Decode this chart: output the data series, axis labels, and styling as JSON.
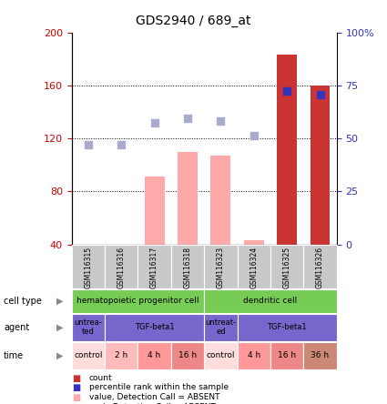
{
  "title": "GDS2940 / 689_at",
  "samples": [
    "GSM116315",
    "GSM116316",
    "GSM116317",
    "GSM116318",
    "GSM116323",
    "GSM116324",
    "GSM116325",
    "GSM116326"
  ],
  "bar_values": [
    0,
    2,
    91,
    110,
    107,
    43,
    183,
    160
  ],
  "bar_colors": [
    "#cc3333",
    "#cc3333",
    "#ffaaaa",
    "#ffaaaa",
    "#ffaaaa",
    "#ffaaaa",
    "#cc3333",
    "#cc3333"
  ],
  "rank_dots": [
    115,
    115,
    132,
    135,
    133,
    122,
    156,
    153
  ],
  "rank_dot_colors": [
    "#aaaacc",
    "#aaaacc",
    "#aaaacc",
    "#aaaacc",
    "#aaaacc",
    "#aaaacc",
    "#3333bb",
    "#3333bb"
  ],
  "ylim": [
    40,
    200
  ],
  "y_ticks_left": [
    40,
    80,
    120,
    160,
    200
  ],
  "right_ytick_values": [
    40,
    80,
    120,
    160,
    200
  ],
  "right_ytick_labels": [
    "0",
    "25",
    "50",
    "75",
    "100%"
  ],
  "cell_spans": [
    [
      0,
      4,
      "hematopoietic progenitor cell"
    ],
    [
      4,
      8,
      "dendritic cell"
    ]
  ],
  "cell_color": "#77cc55",
  "agent_spans": [
    [
      0,
      1,
      "untrea-\nted"
    ],
    [
      1,
      4,
      "TGF-beta1"
    ],
    [
      4,
      5,
      "untreat-\ned"
    ],
    [
      5,
      8,
      "TGF-beta1"
    ]
  ],
  "agent_color": "#7766cc",
  "time_spans": [
    [
      0,
      1,
      "control",
      "#ffdddd"
    ],
    [
      1,
      2,
      "2 h",
      "#ffbbbb"
    ],
    [
      2,
      3,
      "4 h",
      "#ff9999"
    ],
    [
      3,
      4,
      "16 h",
      "#ee8888"
    ],
    [
      4,
      5,
      "control",
      "#ffdddd"
    ],
    [
      5,
      6,
      "4 h",
      "#ff9999"
    ],
    [
      6,
      7,
      "16 h",
      "#ee8888"
    ],
    [
      7,
      8,
      "36 h",
      "#cc8877"
    ]
  ],
  "legend_items": [
    {
      "color": "#cc3333",
      "label": "count"
    },
    {
      "color": "#3333bb",
      "label": "percentile rank within the sample"
    },
    {
      "color": "#ffaaaa",
      "label": "value, Detection Call = ABSENT"
    },
    {
      "color": "#aaaacc",
      "label": "rank, Detection Call = ABSENT"
    }
  ],
  "left_label_color": "#cc0000",
  "right_label_color": "#3333bb",
  "grid_yticks": [
    80,
    120,
    160
  ]
}
